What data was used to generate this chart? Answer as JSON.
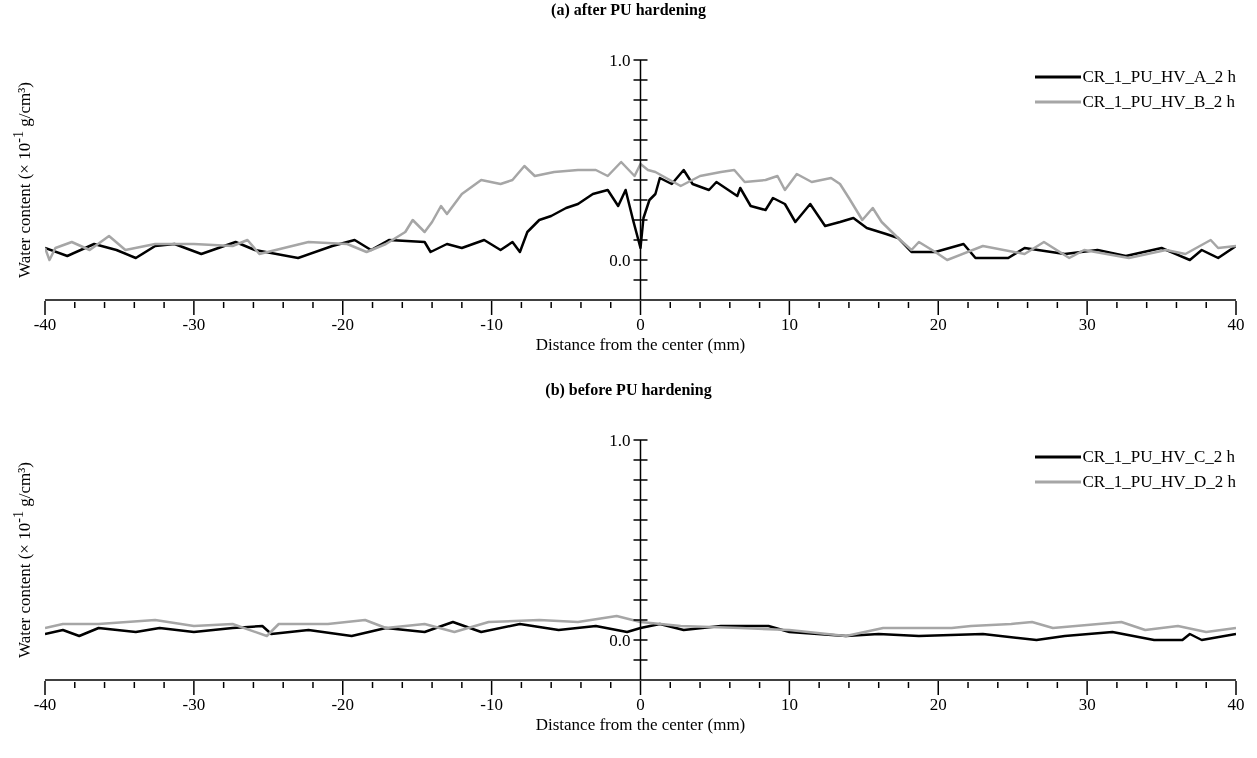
{
  "chart_data": [
    {
      "type": "line",
      "title": "(a) after PU hardening",
      "xlabel": "Distance from the center (mm)",
      "ylabel": "Water content (× 10$^{-1}$ g/cm³)",
      "legend": "top right",
      "xlim": [
        -40,
        40
      ],
      "ylim": [
        -0.2,
        1.0
      ],
      "xticks": [
        -40,
        {
          "value": -38,
          "label": null
        },
        {
          "value": -36,
          "label": null
        },
        {
          "value": -34,
          "label": null
        },
        {
          "value": -32,
          "label": null
        },
        -30,
        {
          "value": -28,
          "label": null
        },
        {
          "value": -26,
          "label": null
        },
        {
          "value": -24,
          "label": null
        },
        {
          "value": -22,
          "label": null
        },
        -20,
        {
          "value": -18,
          "label": null
        },
        {
          "value": -16,
          "label": null
        },
        {
          "value": -14,
          "label": null
        },
        {
          "value": -12,
          "label": null
        },
        -10,
        {
          "value": -8,
          "label": null
        },
        {
          "value": -6,
          "label": null
        },
        {
          "value": -4,
          "label": null
        },
        {
          "value": -2,
          "label": null
        },
        0,
        {
          "value": 2,
          "label": null
        },
        {
          "value": 4,
          "label": null
        },
        {
          "value": 6,
          "label": null
        },
        {
          "value": 8,
          "label": null
        },
        10,
        {
          "value": 12,
          "label": null
        },
        {
          "value": 14,
          "label": null
        },
        {
          "value": 16,
          "label": null
        },
        {
          "value": 18,
          "label": null
        },
        20,
        {
          "value": 22,
          "label": null
        },
        {
          "value": 24,
          "label": null
        },
        {
          "value": 26,
          "label": null
        },
        {
          "value": 28,
          "label": null
        },
        30,
        {
          "value": 32,
          "label": null
        },
        {
          "value": 34,
          "label": null
        },
        {
          "value": 36,
          "label": null
        },
        {
          "value": 38,
          "label": null
        },
        40
      ],
      "yticks": [
        {
          "value": -0.1,
          "label": null
        },
        {
          "value": 0,
          "label": "0.0"
        },
        {
          "value": 0.1,
          "label": null
        },
        {
          "value": 0.2,
          "label": null
        },
        {
          "value": 0.3,
          "label": null
        },
        {
          "value": 0.4,
          "label": null
        },
        {
          "value": 0.5,
          "label": null
        },
        {
          "value": 0.6,
          "label": null
        },
        {
          "value": 0.7,
          "label": null
        },
        {
          "value": 0.8,
          "label": null
        },
        {
          "value": 0.9,
          "label": null
        },
        {
          "value": 1,
          "label": "1.0"
        }
      ],
      "series": [
        {
          "name": "CR_1_PU_HV_A_2 h",
          "color": "#000000",
          "x": [
            -40,
            -38.5,
            -36.7,
            -35.2,
            -33.9,
            -32.6,
            -31.3,
            -29.5,
            -27.2,
            -25.9,
            -23,
            -20.7,
            -19.2,
            -18.1,
            -16.9,
            -14.5,
            -14.1,
            -13,
            -12,
            -10.5,
            -9.4,
            -8.6,
            -8.1,
            -7.6,
            -6.8,
            -6,
            -5,
            -4.2,
            -3.2,
            -2.2,
            -1.5,
            -1,
            -0.5,
            0,
            0.2,
            0.6,
            1,
            1.3,
            2.1,
            2.9,
            3.5,
            4.6,
            5.1,
            6.5,
            6.7,
            7.4,
            8.4,
            8.9,
            9.7,
            10.4,
            11.4,
            12.4,
            13.4,
            14.3,
            15.2,
            16.5,
            17.3,
            18.2,
            19.8,
            21.7,
            22.5,
            24.7,
            25.8,
            28.5,
            30.7,
            32.6,
            35,
            36.9,
            37.7,
            38.8,
            40
          ],
          "values": [
            0.06,
            0.02,
            0.08,
            0.05,
            0.01,
            0.07,
            0.08,
            0.03,
            0.09,
            0.05,
            0.01,
            0.07,
            0.1,
            0.05,
            0.1,
            0.09,
            0.04,
            0.08,
            0.06,
            0.1,
            0.05,
            0.09,
            0.04,
            0.14,
            0.2,
            0.22,
            0.26,
            0.28,
            0.33,
            0.35,
            0.27,
            0.35,
            0.2,
            0.06,
            0.21,
            0.3,
            0.33,
            0.41,
            0.38,
            0.45,
            0.38,
            0.35,
            0.39,
            0.32,
            0.36,
            0.27,
            0.25,
            0.31,
            0.28,
            0.19,
            0.28,
            0.17,
            0.19,
            0.21,
            0.16,
            0.13,
            0.11,
            0.04,
            0.04,
            0.08,
            0.01,
            0.01,
            0.06,
            0.03,
            0.05,
            0.02,
            0.06,
            0.0,
            0.05,
            0.01,
            0.07
          ]
        },
        {
          "name": "CR_1_PU_HV_B_2 h",
          "color": "#a6a6a6",
          "x": [
            -40,
            -39.7,
            -39.3,
            -38.2,
            -37,
            -35.7,
            -34.6,
            -32.6,
            -30,
            -27.4,
            -26.4,
            -25.6,
            -22.3,
            -19.7,
            -18.4,
            -17.1,
            -15.8,
            -15.3,
            -14.5,
            -14,
            -13.4,
            -13,
            -12,
            -10.7,
            -9.4,
            -8.6,
            -7.8,
            -7.1,
            -5.8,
            -4.2,
            -3,
            -2.2,
            -1.3,
            -0.4,
            0,
            0.5,
            1,
            2.7,
            4,
            5.4,
            6.3,
            7,
            8.4,
            9.2,
            9.7,
            10.5,
            11.5,
            12.8,
            13.4,
            14,
            14.9,
            15.6,
            16.2,
            17.3,
            18.2,
            18.7,
            19.8,
            20.6,
            23,
            25.8,
            27.1,
            28.8,
            29.8,
            32.8,
            35.3,
            36.6,
            38.3,
            38.8,
            40
          ],
          "values": [
            0.06,
            0.0,
            0.06,
            0.09,
            0.05,
            0.12,
            0.05,
            0.08,
            0.08,
            0.07,
            0.1,
            0.03,
            0.09,
            0.08,
            0.04,
            0.08,
            0.14,
            0.2,
            0.14,
            0.19,
            0.27,
            0.23,
            0.33,
            0.4,
            0.38,
            0.4,
            0.47,
            0.42,
            0.44,
            0.45,
            0.45,
            0.42,
            0.49,
            0.42,
            0.48,
            0.45,
            0.44,
            0.37,
            0.42,
            0.44,
            0.45,
            0.39,
            0.4,
            0.42,
            0.35,
            0.43,
            0.39,
            0.41,
            0.38,
            0.31,
            0.2,
            0.26,
            0.19,
            0.11,
            0.05,
            0.09,
            0.04,
            0.0,
            0.07,
            0.03,
            0.09,
            0.01,
            0.05,
            0.01,
            0.05,
            0.03,
            0.1,
            0.06,
            0.07
          ]
        }
      ]
    },
    {
      "type": "line",
      "title": "(b) before PU hardening",
      "xlabel": "Distance from the center (mm)",
      "ylabel": "Water content (× 10$^{-1}$ g/cm³)",
      "legend": "top right",
      "xlim": [
        -40,
        40
      ],
      "ylim": [
        -0.2,
        1.0
      ],
      "xticks": [
        -40,
        {
          "value": -38,
          "label": null
        },
        {
          "value": -36,
          "label": null
        },
        {
          "value": -34,
          "label": null
        },
        {
          "value": -32,
          "label": null
        },
        -30,
        {
          "value": -28,
          "label": null
        },
        {
          "value": -26,
          "label": null
        },
        {
          "value": -24,
          "label": null
        },
        {
          "value": -22,
          "label": null
        },
        -20,
        {
          "value": -18,
          "label": null
        },
        {
          "value": -16,
          "label": null
        },
        {
          "value": -14,
          "label": null
        },
        {
          "value": -12,
          "label": null
        },
        -10,
        {
          "value": -8,
          "label": null
        },
        {
          "value": -6,
          "label": null
        },
        {
          "value": -4,
          "label": null
        },
        {
          "value": -2,
          "label": null
        },
        0,
        {
          "value": 2,
          "label": null
        },
        {
          "value": 4,
          "label": null
        },
        {
          "value": 6,
          "label": null
        },
        {
          "value": 8,
          "label": null
        },
        10,
        {
          "value": 12,
          "label": null
        },
        {
          "value": 14,
          "label": null
        },
        {
          "value": 16,
          "label": null
        },
        {
          "value": 18,
          "label": null
        },
        20,
        {
          "value": 22,
          "label": null
        },
        {
          "value": 24,
          "label": null
        },
        {
          "value": 26,
          "label": null
        },
        {
          "value": 28,
          "label": null
        },
        30,
        {
          "value": 32,
          "label": null
        },
        {
          "value": 34,
          "label": null
        },
        {
          "value": 36,
          "label": null
        },
        {
          "value": 38,
          "label": null
        },
        40
      ],
      "yticks": [
        {
          "value": -0.1,
          "label": null
        },
        {
          "value": 0,
          "label": "0.0"
        },
        {
          "value": 0.1,
          "label": null
        },
        {
          "value": 0.2,
          "label": null
        },
        {
          "value": 0.3,
          "label": null
        },
        {
          "value": 0.4,
          "label": null
        },
        {
          "value": 0.5,
          "label": null
        },
        {
          "value": 0.6,
          "label": null
        },
        {
          "value": 0.7,
          "label": null
        },
        {
          "value": 0.8,
          "label": null
        },
        {
          "value": 0.9,
          "label": null
        },
        {
          "value": 1,
          "label": "1.0"
        }
      ],
      "series": [
        {
          "name": "CR_1_PU_HV_C_2 h",
          "color": "#000000",
          "x": [
            -40,
            -38.8,
            -37.7,
            -36.4,
            -33.9,
            -32.3,
            -30,
            -27.4,
            -25.4,
            -24.8,
            -22.3,
            -19.4,
            -17.1,
            -14.5,
            -12.6,
            -10.7,
            -8.1,
            -5.5,
            -3,
            -0.9,
            0,
            1.3,
            2.9,
            5.4,
            8.6,
            10,
            13.8,
            16,
            18.7,
            23,
            26.6,
            28.5,
            31.7,
            34.5,
            36.4,
            36.9,
            37.7,
            40
          ],
          "values": [
            0.03,
            0.05,
            0.02,
            0.06,
            0.04,
            0.06,
            0.04,
            0.06,
            0.07,
            0.03,
            0.05,
            0.02,
            0.06,
            0.04,
            0.09,
            0.04,
            0.08,
            0.05,
            0.07,
            0.04,
            0.06,
            0.08,
            0.05,
            0.07,
            0.07,
            0.04,
            0.02,
            0.03,
            0.02,
            0.03,
            0.0,
            0.02,
            0.04,
            0.0,
            0.0,
            0.03,
            0.0,
            0.03
          ]
        },
        {
          "name": "CR_1_PU_HV_D_2 h",
          "color": "#a6a6a6",
          "x": [
            -40,
            -38.8,
            -36.4,
            -32.6,
            -30,
            -27.4,
            -25.1,
            -24.3,
            -21,
            -18.5,
            -17.1,
            -14.5,
            -12.5,
            -10.2,
            -6.8,
            -4.2,
            -1.6,
            0,
            2.7,
            6.7,
            10,
            13.8,
            16.3,
            20.9,
            22.2,
            24.9,
            26.3,
            27.7,
            32.3,
            33.9,
            36.1,
            38,
            40
          ],
          "values": [
            0.06,
            0.08,
            0.08,
            0.1,
            0.07,
            0.08,
            0.02,
            0.08,
            0.08,
            0.1,
            0.06,
            0.08,
            0.04,
            0.09,
            0.1,
            0.09,
            0.12,
            0.09,
            0.07,
            0.06,
            0.05,
            0.02,
            0.06,
            0.06,
            0.07,
            0.08,
            0.09,
            0.06,
            0.09,
            0.05,
            0.07,
            0.04,
            0.06
          ]
        }
      ]
    }
  ]
}
